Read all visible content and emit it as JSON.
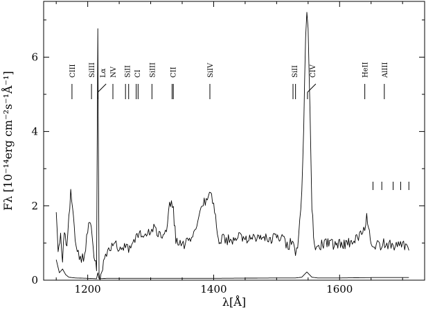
{
  "chart_data": {
    "type": "line",
    "xlabel": "λ[Å]",
    "ylabel": "Fλ [10⁻¹⁴erg cm⁻²s⁻¹Å⁻¹]",
    "xlim": [
      1130,
      1735
    ],
    "ylim": [
      0,
      7.5
    ],
    "xticks": [
      1200,
      1400,
      1600
    ],
    "yticks": [
      0,
      2,
      4,
      6
    ],
    "grid": false,
    "series": [
      {
        "role": "spectrum",
        "x": [
          1150,
          1153,
          1157,
          1160,
          1163,
          1167,
          1170,
          1173,
          1176,
          1180,
          1185,
          1190,
          1195,
          1200,
          1203,
          1207,
          1210,
          1214,
          1216,
          1218,
          1221,
          1225,
          1230,
          1235,
          1240,
          1245,
          1250,
          1255,
          1260,
          1265,
          1270,
          1275,
          1280,
          1285,
          1290,
          1295,
          1300,
          1305,
          1310,
          1315,
          1320,
          1325,
          1330,
          1333,
          1336,
          1340,
          1345,
          1350,
          1355,
          1360,
          1365,
          1370,
          1375,
          1380,
          1385,
          1390,
          1395,
          1400,
          1403,
          1406,
          1410,
          1415,
          1420,
          1425,
          1430,
          1440,
          1450,
          1460,
          1470,
          1480,
          1490,
          1500,
          1510,
          1515,
          1520,
          1525,
          1530,
          1535,
          1540,
          1543,
          1546,
          1548,
          1550,
          1553,
          1556,
          1560,
          1565,
          1570,
          1580,
          1590,
          1600,
          1610,
          1620,
          1630,
          1635,
          1640,
          1643,
          1646,
          1650,
          1655,
          1660,
          1665,
          1670,
          1675,
          1680,
          1685,
          1690,
          1695,
          1700,
          1705,
          1710
        ],
        "y": [
          1.9,
          0.8,
          1.2,
          0.6,
          1.3,
          0.9,
          1.6,
          2.35,
          2.05,
          1.2,
          0.7,
          0.55,
          0.65,
          1.35,
          1.55,
          1.2,
          0.7,
          0.3,
          6.8,
          0.05,
          0.2,
          0.4,
          0.7,
          0.9,
          0.95,
          1.0,
          0.85,
          0.9,
          0.95,
          0.8,
          0.95,
          1.1,
          1.15,
          1.3,
          1.2,
          1.3,
          1.3,
          1.45,
          1.3,
          1.2,
          1.15,
          1.35,
          2.0,
          2.05,
          1.85,
          1.1,
          1.0,
          1.0,
          0.95,
          1.1,
          1.05,
          1.25,
          1.6,
          1.85,
          2.1,
          2.2,
          2.3,
          2.1,
          1.7,
          1.2,
          1.05,
          1.1,
          1.05,
          1.15,
          1.1,
          1.15,
          1.1,
          1.15,
          1.1,
          1.15,
          1.1,
          1.15,
          1.1,
          1.0,
          0.95,
          1.15,
          0.6,
          1.2,
          2.4,
          4.2,
          6.6,
          7.25,
          6.9,
          4.6,
          2.0,
          0.9,
          0.85,
          0.95,
          1.0,
          0.95,
          1.0,
          0.95,
          1.05,
          1.15,
          1.25,
          1.4,
          1.75,
          1.5,
          1.1,
          0.95,
          1.0,
          0.95,
          1.0,
          0.9,
          0.95,
          0.9,
          0.95,
          0.9,
          0.95,
          0.85,
          0.8
        ]
      },
      {
        "role": "error",
        "x": [
          1150,
          1155,
          1160,
          1165,
          1170,
          1180,
          1200,
          1214,
          1216,
          1218,
          1230,
          1300,
          1400,
          1500,
          1530,
          1540,
          1548,
          1556,
          1565,
          1600,
          1650,
          1700,
          1710
        ],
        "y": [
          0.55,
          0.2,
          0.3,
          0.15,
          0.08,
          0.06,
          0.05,
          0.04,
          0.2,
          0.04,
          0.05,
          0.05,
          0.05,
          0.06,
          0.06,
          0.08,
          0.22,
          0.08,
          0.06,
          0.06,
          0.07,
          0.07,
          0.07
        ]
      }
    ],
    "annotations": [
      {
        "label": "CIII",
        "x": [
          1175
        ]
      },
      {
        "label": "SiIII",
        "x": [
          1206
        ]
      },
      {
        "label": "Lα",
        "x": [
          1216
        ],
        "tilted": true
      },
      {
        "label": "NV",
        "x": [
          1240
        ]
      },
      {
        "label": "SiII",
        "x": [
          1260,
          1265
        ]
      },
      {
        "label": "CI",
        "x": [
          1277,
          1280
        ]
      },
      {
        "label": "SiIII",
        "x": [
          1302
        ]
      },
      {
        "label": "CII",
        "x": [
          1334,
          1336
        ]
      },
      {
        "label": "SiIV",
        "x": [
          1394
        ]
      },
      {
        "label": "SiII",
        "x": [
          1526,
          1530
        ]
      },
      {
        "label": "CIV",
        "x": [
          1549
        ],
        "tilted": true
      },
      {
        "label": "HeII",
        "x": [
          1640
        ]
      },
      {
        "label": "AlIII",
        "x": [
          1671
        ]
      }
    ],
    "minor_marks_x": [
      1653,
      1667,
      1685,
      1697,
      1710
    ]
  }
}
